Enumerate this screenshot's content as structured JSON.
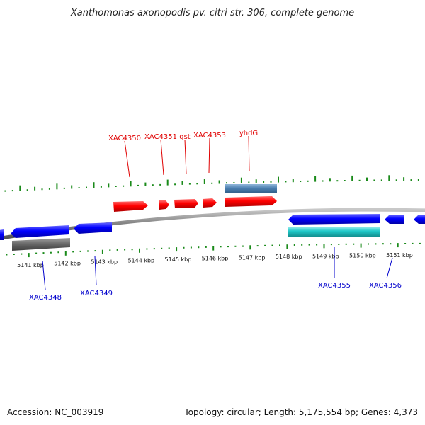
{
  "title": "Xanthomonas axonopodis pv. citri str. 306, complete genome",
  "accession": "Accession: NC_003919",
  "summary": "Topology: circular; Length: 5,175,554 bp; Genes: 4,373",
  "colors": {
    "top_label": "#e00000",
    "bottom_label": "#0000cc",
    "tick": "#1a8a1a",
    "backbone": "#808080",
    "red_cds": "#ff0000",
    "steel_blue": "#4a7fb0",
    "blue_cds": "#0000ff",
    "gray_cds": "#6a6a6a",
    "cyan_cds": "#20c8c8"
  },
  "scale": {
    "ticks": [
      "5141 kbp",
      "5142 kbp",
      "5143 kbp",
      "5144 kbp",
      "5145 kbp",
      "5146 kbp",
      "5147 kbp",
      "5148 kbp",
      "5149 kbp",
      "5150 kbp",
      "5151 kbp"
    ]
  },
  "labels": {
    "top": [
      {
        "text": "XAC4350",
        "color": "#e00000"
      },
      {
        "text": "XAC4351",
        "color": "#e00000"
      },
      {
        "text": "gst",
        "color": "#e00000"
      },
      {
        "text": "XAC4353",
        "color": "#e00000"
      },
      {
        "text": "yhdG",
        "color": "#e00000"
      }
    ],
    "bottom": [
      {
        "text": "XAC4348",
        "color": "#0000cc"
      },
      {
        "text": "XAC4349",
        "color": "#0000cc"
      },
      {
        "text": "XAC4355",
        "color": "#0000cc"
      },
      {
        "text": "XAC4356",
        "color": "#0000cc"
      }
    ]
  }
}
